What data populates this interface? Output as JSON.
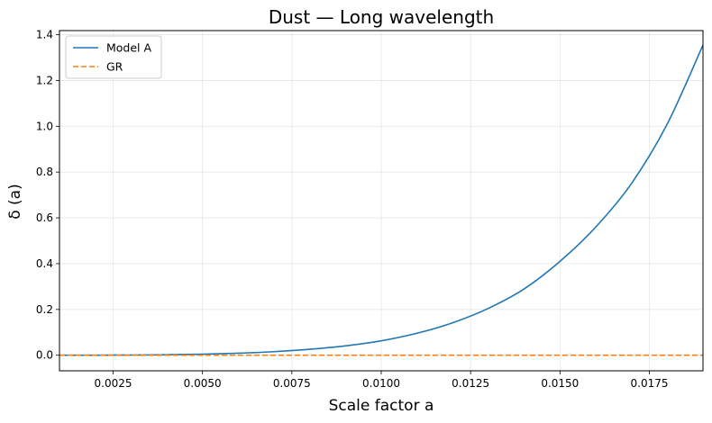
{
  "chart_data": {
    "type": "line",
    "title": "Dust — Long wavelength",
    "xlabel": "Scale factor a",
    "ylabel": "δ (a)",
    "xlim": [
      0.001,
      0.019
    ],
    "ylim": [
      -0.068,
      1.418
    ],
    "xticks": [
      0.0025,
      0.005,
      0.0075,
      0.01,
      0.0125,
      0.015,
      0.0175
    ],
    "xtick_labels": [
      "0.0025",
      "0.0050",
      "0.0075",
      "0.0100",
      "0.0125",
      "0.0150",
      "0.0175"
    ],
    "yticks": [
      0.0,
      0.2,
      0.4,
      0.6,
      0.8,
      1.0,
      1.2,
      1.4
    ],
    "ytick_labels": [
      "0.0",
      "0.2",
      "0.4",
      "0.6",
      "0.8",
      "1.0",
      "1.2",
      "1.4"
    ],
    "grid": true,
    "legend_position": "top-left",
    "series": [
      {
        "name": "Model A",
        "color": "#1f77b4",
        "style": "solid",
        "x": [
          0.001,
          0.002,
          0.003,
          0.004,
          0.005,
          0.006,
          0.007,
          0.008,
          0.009,
          0.01,
          0.011,
          0.012,
          0.013,
          0.014,
          0.015,
          0.016,
          0.017,
          0.018,
          0.019
        ],
        "y": [
          0.0,
          0.0002,
          0.0008,
          0.0022,
          0.0045,
          0.0088,
          0.0155,
          0.026,
          0.041,
          0.063,
          0.096,
          0.142,
          0.205,
          0.29,
          0.41,
          0.56,
          0.75,
          1.01,
          1.355
        ]
      },
      {
        "name": "GR",
        "color": "#ff7f0e",
        "style": "dashed",
        "x": [
          0.001,
          0.019
        ],
        "y": [
          0.0,
          0.0
        ]
      }
    ]
  }
}
